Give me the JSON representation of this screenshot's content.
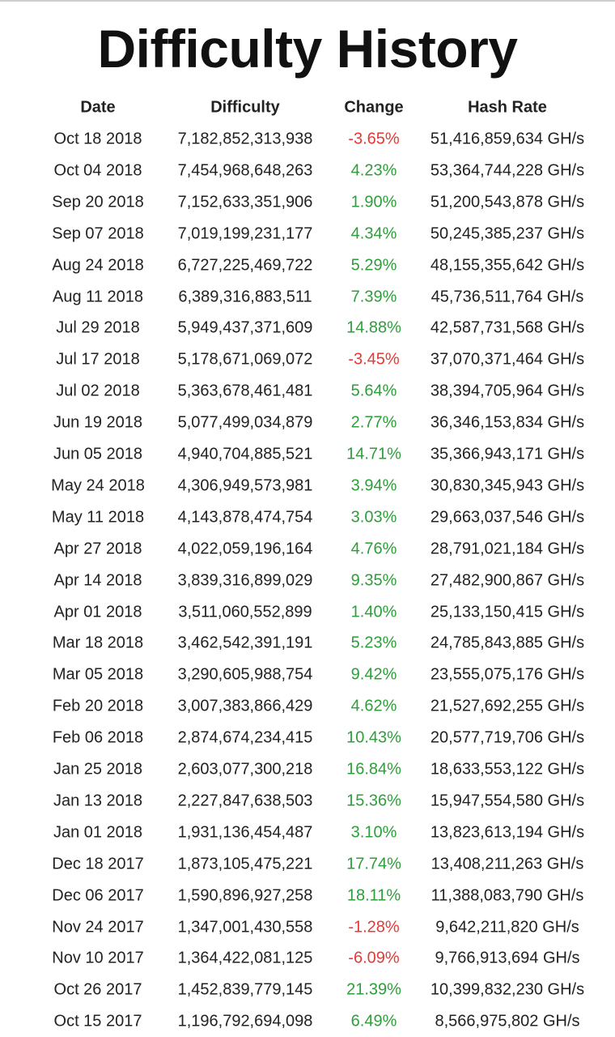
{
  "title": "Difficulty History",
  "table": {
    "headers": [
      "Date",
      "Difficulty",
      "Change",
      "Hash Rate"
    ],
    "rows": [
      [
        "Oct 18 2018",
        "7,182,852,313,938",
        "-3.65%",
        "51,416,859,634 GH/s"
      ],
      [
        "Oct 04 2018",
        "7,454,968,648,263",
        "4.23%",
        "53,364,744,228 GH/s"
      ],
      [
        "Sep 20 2018",
        "7,152,633,351,906",
        "1.90%",
        "51,200,543,878 GH/s"
      ],
      [
        "Sep 07 2018",
        "7,019,199,231,177",
        "4.34%",
        "50,245,385,237 GH/s"
      ],
      [
        "Aug 24 2018",
        "6,727,225,469,722",
        "5.29%",
        "48,155,355,642 GH/s"
      ],
      [
        "Aug 11 2018",
        "6,389,316,883,511",
        "7.39%",
        "45,736,511,764 GH/s"
      ],
      [
        "Jul 29 2018",
        "5,949,437,371,609",
        "14.88%",
        "42,587,731,568 GH/s"
      ],
      [
        "Jul 17 2018",
        "5,178,671,069,072",
        "-3.45%",
        "37,070,371,464 GH/s"
      ],
      [
        "Jul 02 2018",
        "5,363,678,461,481",
        "5.64%",
        "38,394,705,964 GH/s"
      ],
      [
        "Jun 19 2018",
        "5,077,499,034,879",
        "2.77%",
        "36,346,153,834 GH/s"
      ],
      [
        "Jun 05 2018",
        "4,940,704,885,521",
        "14.71%",
        "35,366,943,171 GH/s"
      ],
      [
        "May 24 2018",
        "4,306,949,573,981",
        "3.94%",
        "30,830,345,943 GH/s"
      ],
      [
        "May 11 2018",
        "4,143,878,474,754",
        "3.03%",
        "29,663,037,546 GH/s"
      ],
      [
        "Apr 27 2018",
        "4,022,059,196,164",
        "4.76%",
        "28,791,021,184 GH/s"
      ],
      [
        "Apr 14 2018",
        "3,839,316,899,029",
        "9.35%",
        "27,482,900,867 GH/s"
      ],
      [
        "Apr 01 2018",
        "3,511,060,552,899",
        "1.40%",
        "25,133,150,415 GH/s"
      ],
      [
        "Mar 18 2018",
        "3,462,542,391,191",
        "5.23%",
        "24,785,843,885 GH/s"
      ],
      [
        "Mar 05 2018",
        "3,290,605,988,754",
        "9.42%",
        "23,555,075,176 GH/s"
      ],
      [
        "Feb 20 2018",
        "3,007,383,866,429",
        "4.62%",
        "21,527,692,255 GH/s"
      ],
      [
        "Feb 06 2018",
        "2,874,674,234,415",
        "10.43%",
        "20,577,719,706 GH/s"
      ],
      [
        "Jan 25 2018",
        "2,603,077,300,218",
        "16.84%",
        "18,633,553,122 GH/s"
      ],
      [
        "Jan 13 2018",
        "2,227,847,638,503",
        "15.36%",
        "15,947,554,580 GH/s"
      ],
      [
        "Jan 01 2018",
        "1,931,136,454,487",
        "3.10%",
        "13,823,613,194 GH/s"
      ],
      [
        "Dec 18 2017",
        "1,873,105,475,221",
        "17.74%",
        "13,408,211,263 GH/s"
      ],
      [
        "Dec 06 2017",
        "1,590,896,927,258",
        "18.11%",
        "11,388,083,790 GH/s"
      ],
      [
        "Nov 24 2017",
        "1,347,001,430,558",
        "-1.28%",
        "9,642,211,820 GH/s"
      ],
      [
        "Nov 10 2017",
        "1,364,422,081,125",
        "-6.09%",
        "9,766,913,694 GH/s"
      ],
      [
        "Oct 26 2017",
        "1,452,839,779,145",
        "21.39%",
        "10,399,832,230 GH/s"
      ],
      [
        "Oct 15 2017",
        "1,196,792,694,098",
        "6.49%",
        "8,566,975,802 GH/s"
      ]
    ]
  }
}
